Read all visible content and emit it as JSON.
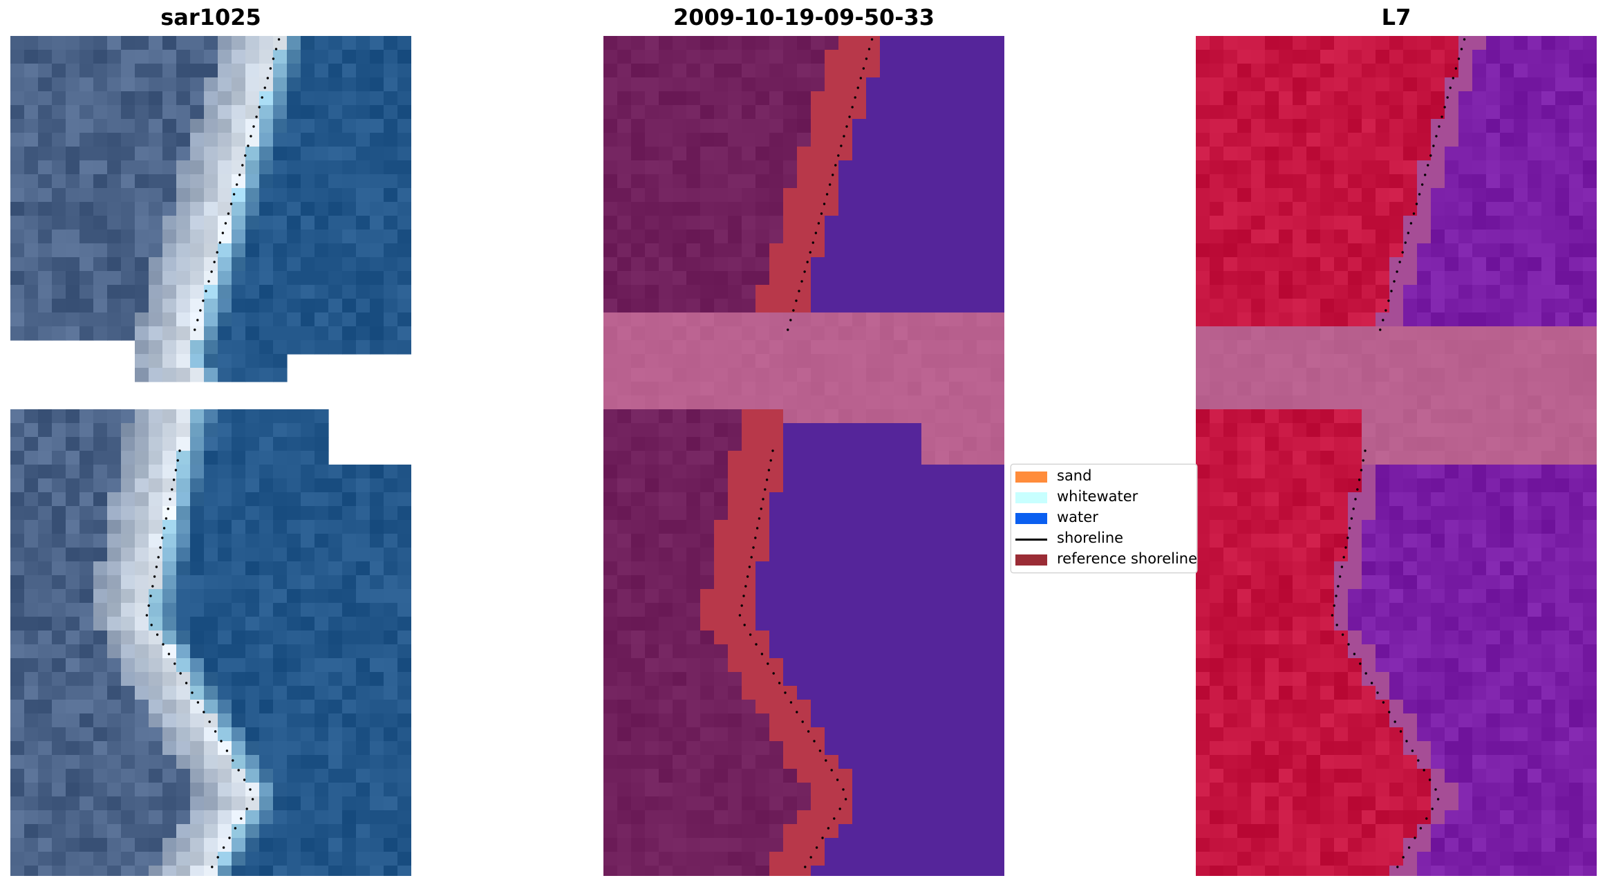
{
  "panels": [
    {
      "title": "sar1025",
      "style": "rgb"
    },
    {
      "title": "2009-10-19-09-50-33",
      "style": "class"
    },
    {
      "title": "L7",
      "style": "index"
    }
  ],
  "legend": {
    "items": [
      {
        "label": "sand",
        "color": "#ff8c3b",
        "kind": "patch"
      },
      {
        "label": "whitewater",
        "color": "#c8ffff",
        "kind": "patch"
      },
      {
        "label": "water",
        "color": "#0a5ff0",
        "kind": "patch"
      },
      {
        "label": "shoreline",
        "color": "#000000",
        "kind": "line"
      },
      {
        "label": "reference shoreline",
        "color": "#9a2c35",
        "kind": "patch"
      }
    ]
  },
  "colors": {
    "gap_band": "#b9618f",
    "land_class": "#70205c",
    "beach_class": "#b8384a",
    "water_class": "#55259a",
    "land_index": "#c51440",
    "water_index": "#7a1ea6",
    "water_rgb": "#23578a",
    "land_rgb": "#4a6287",
    "white_rgb": "#e7eef5",
    "cyan_rgb": "#a5d8ef"
  }
}
